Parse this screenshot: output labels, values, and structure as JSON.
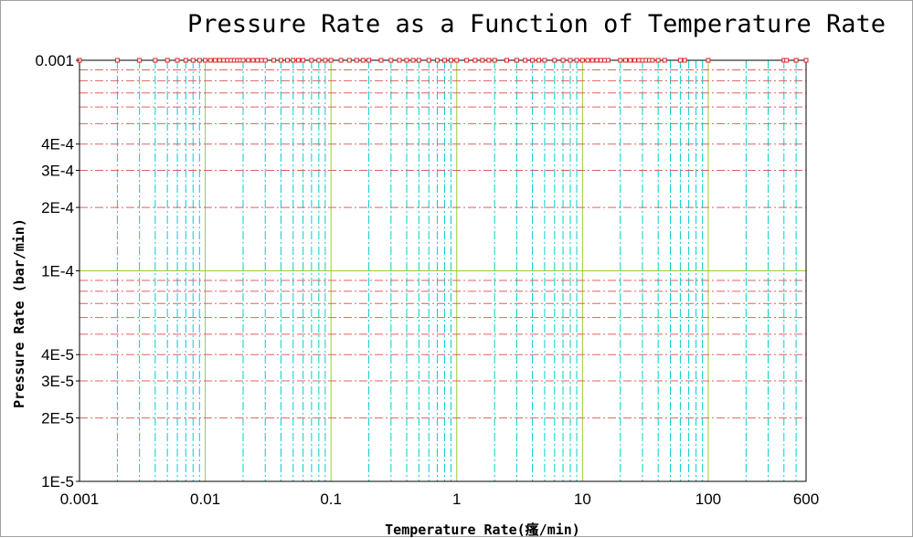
{
  "chart_data": {
    "type": "scatter",
    "title": "Pressure Rate as a Function of Temperature Rate",
    "xlabel": "Temperature Rate(瘙/min)",
    "ylabel": "Pressure Rate (bar/min)",
    "x_scale": "log",
    "y_scale": "log",
    "xlim": [
      0.001,
      600
    ],
    "ylim": [
      1e-05,
      0.001
    ],
    "x_ticks": [
      {
        "value": 0.001,
        "label": "0.001"
      },
      {
        "value": 0.01,
        "label": "0.01"
      },
      {
        "value": 0.1,
        "label": "0.1"
      },
      {
        "value": 1,
        "label": "1"
      },
      {
        "value": 10,
        "label": "10"
      },
      {
        "value": 100,
        "label": "100"
      },
      {
        "value": 600,
        "label": "600"
      }
    ],
    "y_ticks": [
      {
        "value": 0.001,
        "label": "0.001"
      },
      {
        "value": 0.0004,
        "label": "4E-4"
      },
      {
        "value": 0.0003,
        "label": "3E-4"
      },
      {
        "value": 0.0002,
        "label": "2E-4"
      },
      {
        "value": 0.0001,
        "label": "1E-4"
      },
      {
        "value": 4e-05,
        "label": "4E-5"
      },
      {
        "value": 3e-05,
        "label": "3E-5"
      },
      {
        "value": 2e-05,
        "label": "2E-5"
      },
      {
        "value": 1e-05,
        "label": "1E-5"
      }
    ],
    "grid": true,
    "series": [
      {
        "marker": "square",
        "color": "#e02020",
        "x": [
          0.001,
          0.002,
          0.003,
          0.004,
          0.005,
          0.006,
          0.007,
          0.008,
          0.009,
          0.01,
          0.011,
          0.012,
          0.013,
          0.014,
          0.015,
          0.016,
          0.017,
          0.018,
          0.019,
          0.02,
          0.022,
          0.024,
          0.026,
          0.028,
          0.03,
          0.035,
          0.04,
          0.045,
          0.05,
          0.055,
          0.06,
          0.07,
          0.08,
          0.09,
          0.1,
          0.12,
          0.14,
          0.16,
          0.18,
          0.2,
          0.25,
          0.3,
          0.35,
          0.4,
          0.45,
          0.5,
          0.6,
          0.7,
          0.8,
          0.9,
          1,
          1.2,
          1.4,
          1.6,
          1.8,
          2,
          2.5,
          3,
          3.5,
          4,
          4.5,
          5,
          6,
          7,
          8,
          9,
          10,
          11,
          12,
          13,
          14,
          15,
          16,
          20,
          22,
          24,
          26,
          28,
          30,
          32,
          34,
          36,
          40,
          45,
          60,
          65,
          100,
          400,
          420,
          500,
          600
        ],
        "y": [
          0.001,
          0.001,
          0.001,
          0.001,
          0.001,
          0.001,
          0.001,
          0.001,
          0.001,
          0.001,
          0.001,
          0.001,
          0.001,
          0.001,
          0.001,
          0.001,
          0.001,
          0.001,
          0.001,
          0.001,
          0.001,
          0.001,
          0.001,
          0.001,
          0.001,
          0.001,
          0.001,
          0.001,
          0.001,
          0.001,
          0.001,
          0.001,
          0.001,
          0.001,
          0.001,
          0.001,
          0.001,
          0.001,
          0.001,
          0.001,
          0.001,
          0.001,
          0.001,
          0.001,
          0.001,
          0.001,
          0.001,
          0.001,
          0.001,
          0.001,
          0.001,
          0.001,
          0.001,
          0.001,
          0.001,
          0.001,
          0.001,
          0.001,
          0.001,
          0.001,
          0.001,
          0.001,
          0.001,
          0.001,
          0.001,
          0.001,
          0.001,
          0.001,
          0.001,
          0.001,
          0.001,
          0.001,
          0.001,
          0.001,
          0.001,
          0.001,
          0.001,
          0.001,
          0.001,
          0.001,
          0.001,
          0.001,
          0.001,
          0.001,
          0.001,
          0.001,
          0.001,
          0.001,
          0.001,
          0.001,
          0.001
        ]
      }
    ],
    "colors": {
      "major_x_grid": "#9acd32",
      "minor_x_grid": "#00ced1",
      "major_y_grid": "#9acd32",
      "minor_y_grid": "#e06060"
    }
  }
}
